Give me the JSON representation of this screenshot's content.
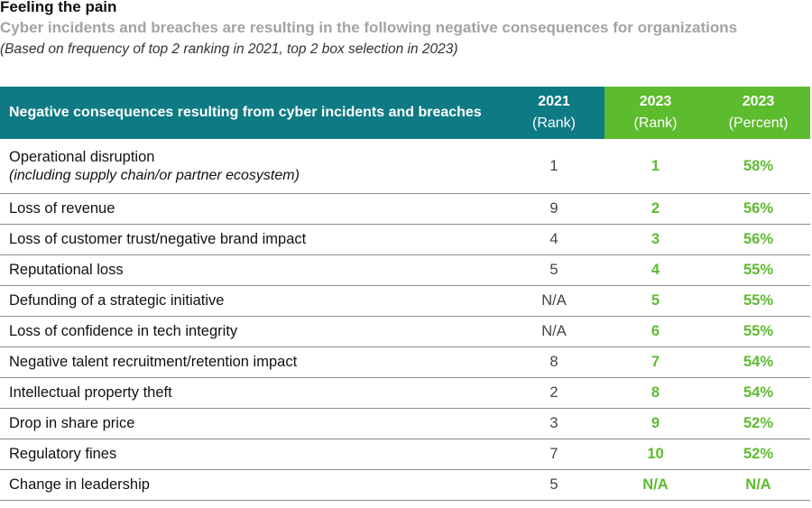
{
  "header": {
    "title": "Feeling the pain",
    "subtitle": "Cyber incidents and breaches are resulting in the following negative consequences for organizations",
    "note": "(Based on frequency of top 2 ranking in 2021, top 2 box selection in 2023)"
  },
  "table": {
    "columns": [
      {
        "label": "Negative consequences resulting from cyber incidents and breaches"
      },
      {
        "year": "2021",
        "sub": "(Rank)"
      },
      {
        "year": "2023",
        "sub": "(Rank)"
      },
      {
        "year": "2023",
        "sub": "(Percent)"
      }
    ],
    "rows": [
      {
        "label": "Operational disruption",
        "sub": "(including supply chain/or partner ecosystem)",
        "rank2021": "1",
        "rank2023": "1",
        "pct2023": "58%"
      },
      {
        "label": "Loss of revenue",
        "rank2021": "9",
        "rank2023": "2",
        "pct2023": "56%"
      },
      {
        "label": "Loss of customer trust/negative brand impact",
        "rank2021": "4",
        "rank2023": "3",
        "pct2023": "56%"
      },
      {
        "label": "Reputational loss",
        "rank2021": "5",
        "rank2023": "4",
        "pct2023": "55%"
      },
      {
        "label": "Defunding of a strategic initiative",
        "rank2021": "N/A",
        "rank2023": "5",
        "pct2023": "55%"
      },
      {
        "label": "Loss of confidence in tech integrity",
        "rank2021": "N/A",
        "rank2023": "6",
        "pct2023": "55%"
      },
      {
        "label": "Negative talent recruitment/retention impact",
        "rank2021": "8",
        "rank2023": "7",
        "pct2023": "54%"
      },
      {
        "label": "Intellectual property theft",
        "rank2021": "2",
        "rank2023": "8",
        "pct2023": "54%"
      },
      {
        "label": "Drop in share price",
        "rank2021": "3",
        "rank2023": "9",
        "pct2023": "52%"
      },
      {
        "label": "Regulatory fines",
        "rank2021": "7",
        "rank2023": "10",
        "pct2023": "52%"
      },
      {
        "label": "Change in leadership",
        "rank2021": "5",
        "rank2023": "N/A",
        "pct2023": "N/A"
      }
    ]
  }
}
